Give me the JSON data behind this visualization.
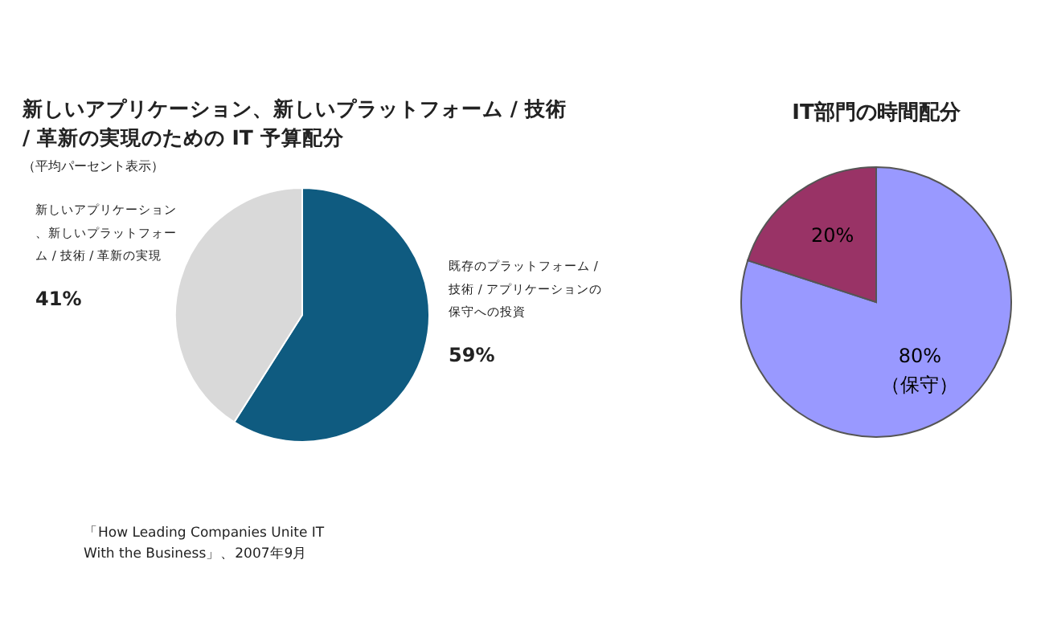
{
  "chart_data": [
    {
      "type": "pie",
      "title": "新しいアプリケーション、新しいプラットフォーム / 技術 / 革新の実現のための IT 予算配分",
      "subtitle": "（平均パーセント表示）",
      "categories": [
        "既存のプラットフォーム / 技術 / アプリケーションの保守への投資",
        "新しいアプリケーション、新しいプラットフォーム / 技術 / 革新の実現"
      ],
      "values": [
        59,
        41
      ],
      "colors": [
        "#0f5b80",
        "#d9d9d9"
      ],
      "value_labels": [
        "59%",
        "41%"
      ],
      "annotations": [
        "「How Leading Companies Unite IT\nWith the Business」、2007年9月"
      ]
    },
    {
      "type": "pie",
      "title": "IT部門の時間配分",
      "categories": [
        "（保守）",
        null
      ],
      "values": [
        80,
        20
      ],
      "colors": [
        "#9999ff",
        "#993366"
      ],
      "value_labels": [
        "80%",
        "20%"
      ]
    }
  ]
}
